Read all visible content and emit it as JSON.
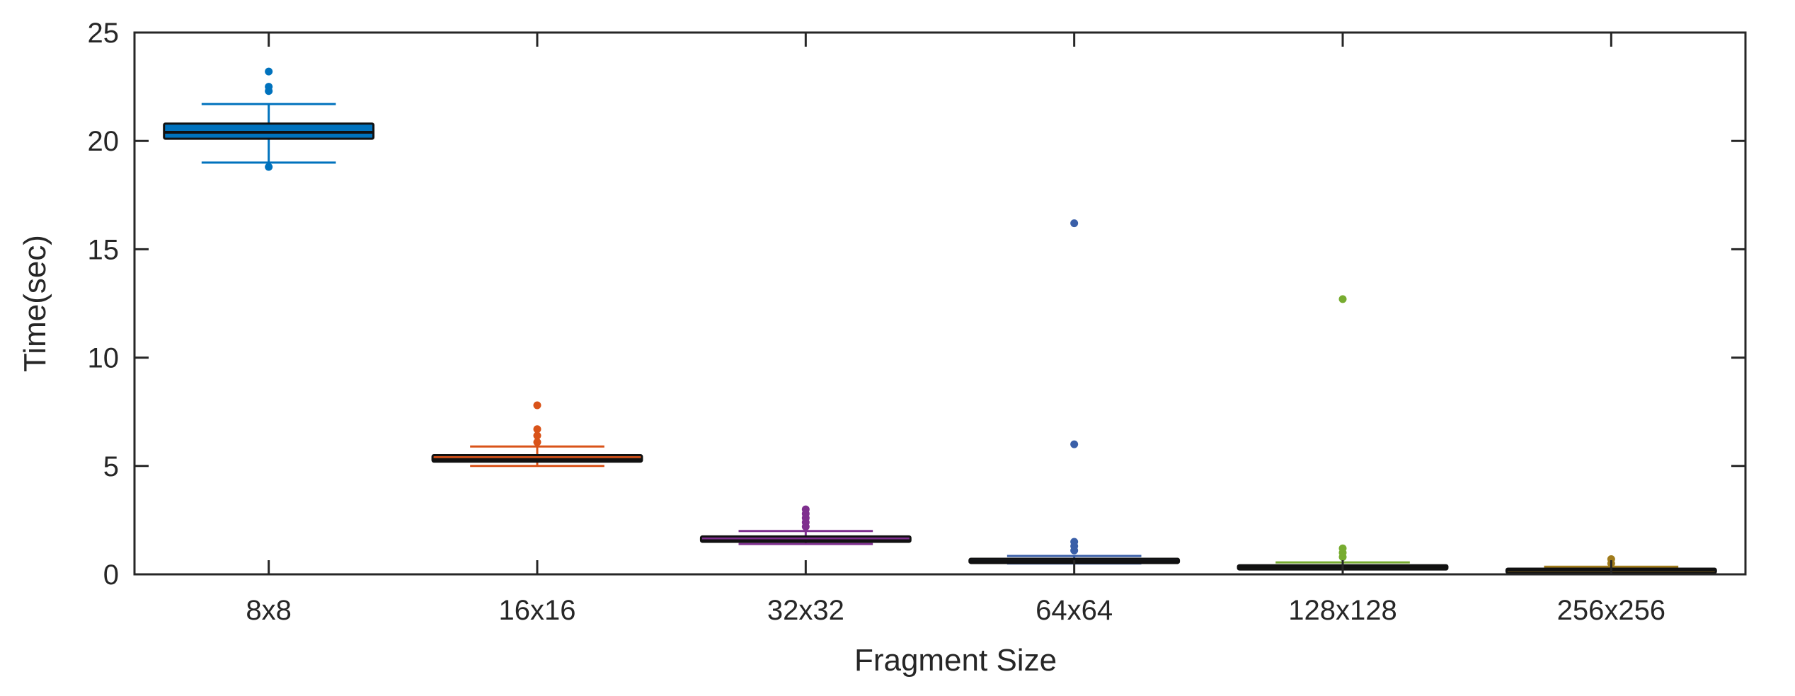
{
  "chart_data": {
    "type": "box",
    "xlabel": "Fragment Size",
    "ylabel": "Time(sec)",
    "ylim": [
      0,
      25
    ],
    "yticks": [
      0,
      5,
      10,
      15,
      20,
      25
    ],
    "grid": false,
    "categories": [
      "8x8",
      "16x16",
      "32x32",
      "64x64",
      "128x128",
      "256x256"
    ],
    "boxes": [
      {
        "category": "8x8",
        "color": "#0072BD",
        "q1": 20.1,
        "median": 20.4,
        "q3": 20.8,
        "whisker_low": 19.0,
        "whisker_high": 21.7,
        "outliers": [
          18.8,
          22.3,
          22.5,
          23.2
        ]
      },
      {
        "category": "16x16",
        "color": "#D95319",
        "q1": 5.2,
        "median": 5.3,
        "q3": 5.5,
        "whisker_low": 5.0,
        "whisker_high": 5.9,
        "outliers": [
          6.1,
          6.4,
          6.7,
          7.8
        ]
      },
      {
        "category": "32x32",
        "color": "#7E2F8E",
        "q1": 1.5,
        "median": 1.55,
        "q3": 1.75,
        "whisker_low": 1.4,
        "whisker_high": 2.0,
        "outliers": [
          2.2,
          2.4,
          2.6,
          2.8,
          3.0
        ]
      },
      {
        "category": "64x64",
        "color": "#3A5FA8",
        "q1": 0.55,
        "median": 0.6,
        "q3": 0.72,
        "whisker_low": 0.5,
        "whisker_high": 0.85,
        "outliers": [
          1.1,
          1.3,
          1.5,
          6.0,
          16.2
        ]
      },
      {
        "category": "128x128",
        "color": "#77AC30",
        "q1": 0.3,
        "median": 0.33,
        "q3": 0.42,
        "whisker_low": 0.25,
        "whisker_high": 0.55,
        "outliers": [
          0.8,
          1.0,
          1.2,
          12.7
        ]
      },
      {
        "category": "256x256",
        "color": "#A07B1B",
        "q1": 0.18,
        "median": 0.2,
        "q3": 0.26,
        "whisker_low": 0.12,
        "whisker_high": 0.35,
        "outliers": [
          0.5,
          0.7
        ]
      }
    ]
  }
}
